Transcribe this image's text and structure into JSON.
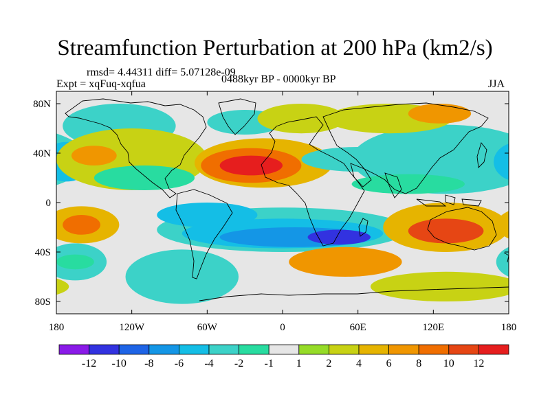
{
  "title": "Streamfunction Perturbation at 200 hPa (km2/s)",
  "stats": "rmsd= 4.44311  diff= 5.07128e-09",
  "experiment": "Expt = xqFuq-xqfua",
  "period": "0488kyr BP - 0000kyr BP",
  "season": "JJA",
  "y_ticks": [
    "80N",
    "40N",
    "0",
    "40S",
    "80S"
  ],
  "x_ticks": [
    "180",
    "120W",
    "60W",
    "0",
    "60E",
    "120E",
    "180"
  ],
  "colorbar": {
    "labels": [
      "-12",
      "-10",
      "-8",
      "-6",
      "-4",
      "-2",
      "-1",
      "1",
      "2",
      "4",
      "6",
      "8",
      "10",
      "12"
    ],
    "colors": [
      "#8a1ae8",
      "#3232e0",
      "#1e64e6",
      "#1496e6",
      "#14bee6",
      "#3cd2c8",
      "#28dca0",
      "#e6e6e6",
      "#96dc28",
      "#c8d214",
      "#e6b400",
      "#f09600",
      "#f06e00",
      "#e64614",
      "#e61e1e"
    ]
  },
  "map_fields": {
    "background": "#e6e6e6",
    "patches": [
      {
        "lon": 165,
        "lat": 33,
        "rlon": 22,
        "rlat": 11,
        "level": -12
      },
      {
        "lon": 165,
        "lat": 33,
        "rlon": 36,
        "rlat": 17,
        "level": -8
      },
      {
        "lon": 145,
        "lat": 33,
        "rlon": 55,
        "rlat": 22,
        "level": -4
      },
      {
        "lon": 130,
        "lat": 35,
        "rlon": 75,
        "rlat": 28,
        "level": -2
      },
      {
        "lon": -175,
        "lat": 33,
        "rlon": 14,
        "rlat": 10,
        "level": -10
      },
      {
        "lon": -172,
        "lat": 33,
        "rlon": 20,
        "rlat": 16,
        "level": -4
      },
      {
        "lon": -130,
        "lat": 62,
        "rlon": 45,
        "rlat": 18,
        "level": -2
      },
      {
        "lon": -120,
        "lat": 35,
        "rlon": 60,
        "rlat": 25,
        "level": 2
      },
      {
        "lon": -150,
        "lat": 38,
        "rlon": 18,
        "rlat": 8,
        "level": 6
      },
      {
        "lon": -110,
        "lat": 20,
        "rlon": 40,
        "rlat": 10,
        "level": -1
      },
      {
        "lon": -15,
        "lat": 32,
        "rlon": 55,
        "rlat": 20,
        "level": 4
      },
      {
        "lon": -25,
        "lat": 30,
        "rlon": 40,
        "rlat": 14,
        "level": 8
      },
      {
        "lon": -25,
        "lat": 30,
        "rlon": 25,
        "rlat": 8,
        "level": 12
      },
      {
        "lon": -30,
        "lat": 65,
        "rlon": 30,
        "rlat": 10,
        "level": -2
      },
      {
        "lon": 15,
        "lat": 68,
        "rlon": 35,
        "rlat": 12,
        "level": 2
      },
      {
        "lon": 85,
        "lat": 68,
        "rlon": 50,
        "rlat": 12,
        "level": 2
      },
      {
        "lon": 125,
        "lat": 72,
        "rlon": 25,
        "rlat": 8,
        "level": 6
      },
      {
        "lon": 60,
        "lat": 35,
        "rlon": 45,
        "rlat": 10,
        "level": -2
      },
      {
        "lon": 100,
        "lat": 15,
        "rlon": 45,
        "rlat": 8,
        "level": -1
      },
      {
        "lon": 0,
        "lat": -22,
        "rlon": 100,
        "rlat": 18,
        "level": -2
      },
      {
        "lon": 0,
        "lat": -25,
        "rlon": 80,
        "rlat": 12,
        "level": -4
      },
      {
        "lon": 10,
        "lat": -28,
        "rlon": 60,
        "rlat": 8,
        "level": -6
      },
      {
        "lon": 45,
        "lat": -28,
        "rlon": 25,
        "rlat": 6,
        "level": -10
      },
      {
        "lon": -60,
        "lat": -10,
        "rlon": 40,
        "rlat": 10,
        "level": -4
      },
      {
        "lon": -80,
        "lat": -60,
        "rlon": 45,
        "rlat": 22,
        "level": -2
      },
      {
        "lon": -160,
        "lat": -18,
        "rlon": 30,
        "rlat": 15,
        "level": 4
      },
      {
        "lon": -160,
        "lat": -18,
        "rlon": 15,
        "rlat": 8,
        "level": 8
      },
      {
        "lon": -165,
        "lat": -48,
        "rlon": 25,
        "rlat": 15,
        "level": -2
      },
      {
        "lon": -165,
        "lat": -48,
        "rlon": 15,
        "rlat": 6,
        "level": -1
      },
      {
        "lon": 130,
        "lat": -20,
        "rlon": 50,
        "rlat": 20,
        "level": 4
      },
      {
        "lon": 130,
        "lat": -23,
        "rlon": 30,
        "rlat": 10,
        "level": 10
      },
      {
        "lon": 50,
        "lat": -48,
        "rlon": 45,
        "rlat": 12,
        "level": 6
      },
      {
        "lon": 130,
        "lat": -68,
        "rlon": 60,
        "rlat": 12,
        "level": 2
      }
    ]
  }
}
